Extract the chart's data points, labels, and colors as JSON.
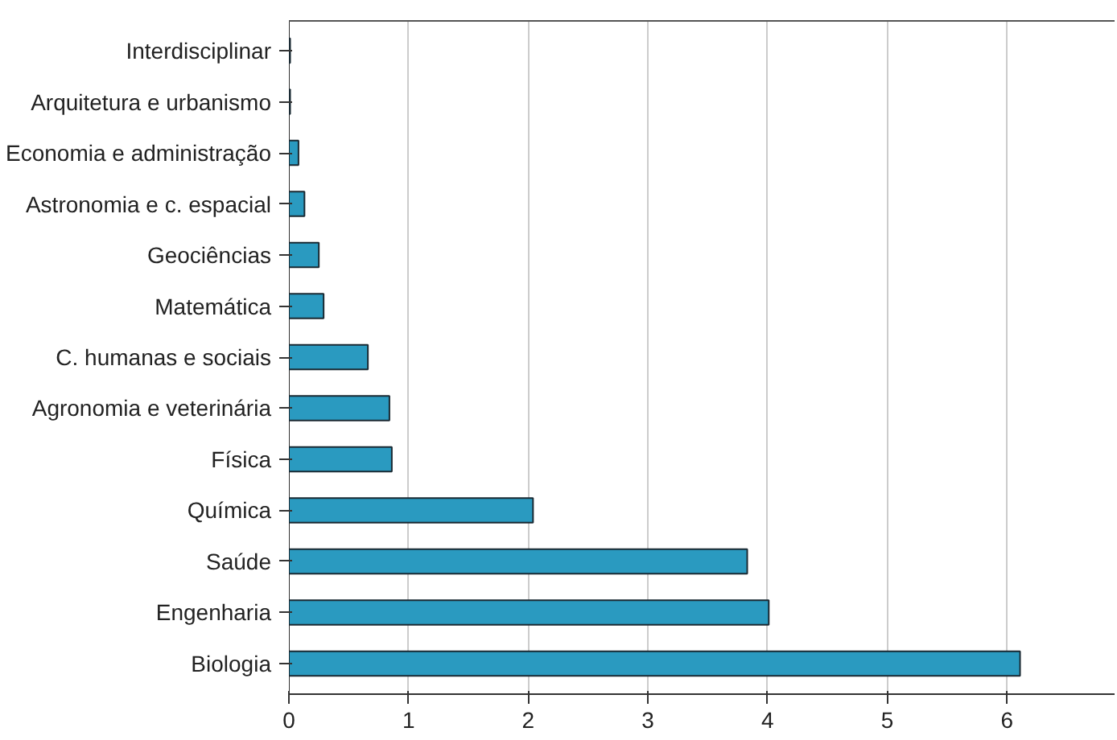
{
  "chart_data": {
    "type": "bar",
    "orientation": "horizontal",
    "categories": [
      "Interdisciplinar",
      "Arquitetura e urbanismo",
      "Economia e administração",
      "Astronomia e c. espacial",
      "Geociências",
      "Matemática",
      "C. humanas e sociais",
      "Agronomia e veterinária",
      "Física",
      "Química",
      "Saúde",
      "Engenharia",
      "Biologia"
    ],
    "values": [
      0.01,
      0.01,
      0.08,
      0.13,
      0.25,
      0.29,
      0.66,
      0.84,
      0.86,
      2.04,
      3.83,
      4.01,
      6.11
    ],
    "color": "#2a9ac0",
    "xlim": [
      0,
      6.9
    ],
    "xticks": [
      0,
      1,
      2,
      3,
      4,
      5,
      6
    ],
    "grid": "x"
  }
}
